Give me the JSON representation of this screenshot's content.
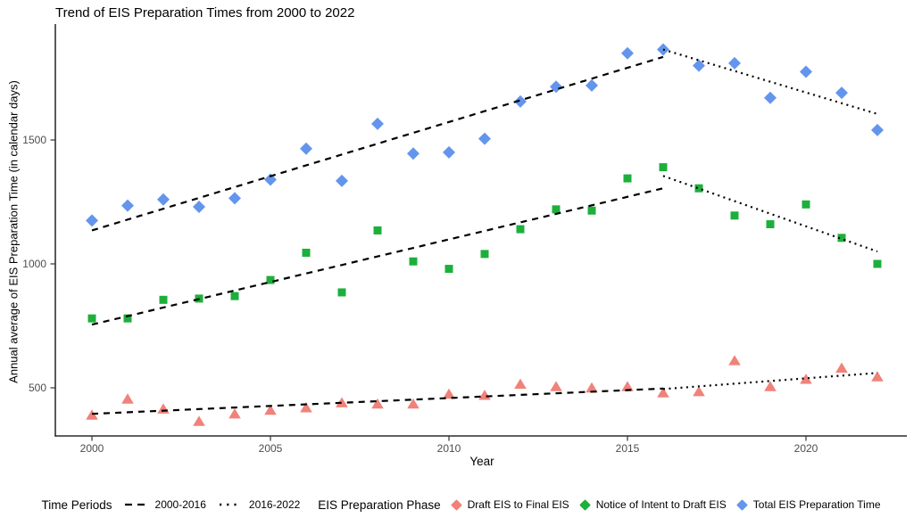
{
  "chart_data": {
    "type": "scatter",
    "title": "Trend of EIS Preparation Times from 2000 to 2022",
    "xlabel": "Year",
    "ylabel": "Annual average of EIS Preparation Time (in calendar days)",
    "x_ticks": [
      2000,
      2005,
      2010,
      2015,
      2020
    ],
    "y_ticks": [
      500,
      1000,
      1500
    ],
    "xlim": [
      1999,
      2023
    ],
    "ylim": [
      300,
      1960
    ],
    "grid": false,
    "legend_position": "bottom",
    "tick_color": "#4D4D4D",
    "axis_color": "#000000",
    "trend_color": "#000000",
    "years": [
      2000,
      2001,
      2002,
      2003,
      2004,
      2005,
      2006,
      2007,
      2008,
      2009,
      2010,
      2011,
      2012,
      2013,
      2014,
      2015,
      2016,
      2017,
      2018,
      2019,
      2020,
      2021,
      2022
    ],
    "series": [
      {
        "name": "Draft EIS to Final EIS",
        "marker": "triangle",
        "color": "#F0827A",
        "values": [
          390,
          455,
          415,
          365,
          395,
          410,
          420,
          440,
          435,
          435,
          475,
          470,
          515,
          505,
          500,
          505,
          480,
          485,
          610,
          505,
          535,
          580,
          545
        ]
      },
      {
        "name": "Notice of Intent to Draft EIS",
        "marker": "square",
        "color": "#1DAF3C",
        "values": [
          780,
          780,
          855,
          860,
          870,
          935,
          1045,
          885,
          1135,
          1010,
          980,
          1040,
          1140,
          1220,
          1215,
          1345,
          1390,
          1305,
          1195,
          1160,
          1240,
          1105,
          1000
        ]
      },
      {
        "name": "Total EIS Preparation Time",
        "marker": "diamond",
        "color": "#6495ED",
        "values": [
          1175,
          1235,
          1260,
          1230,
          1265,
          1340,
          1465,
          1335,
          1565,
          1445,
          1450,
          1505,
          1655,
          1715,
          1720,
          1850,
          1865,
          1800,
          1810,
          1670,
          1775,
          1690,
          1540
        ]
      }
    ],
    "trend_lines": [
      {
        "period": "2000-2016",
        "style": "dashed",
        "series": "Draft EIS to Final EIS",
        "x": [
          2000,
          2016
        ],
        "y": [
          395,
          497
        ]
      },
      {
        "period": "2000-2016",
        "style": "dashed",
        "series": "Notice of Intent to Draft EIS",
        "x": [
          2000,
          2016
        ],
        "y": [
          755,
          1305
        ]
      },
      {
        "period": "2000-2016",
        "style": "dashed",
        "series": "Total EIS Preparation Time",
        "x": [
          2000,
          2016
        ],
        "y": [
          1135,
          1835
        ]
      },
      {
        "period": "2016-2022",
        "style": "dotted",
        "series": "Draft EIS to Final EIS",
        "x": [
          2016,
          2022
        ],
        "y": [
          495,
          560
        ]
      },
      {
        "period": "2016-2022",
        "style": "dotted",
        "series": "Notice of Intent to Draft EIS",
        "x": [
          2016,
          2022
        ],
        "y": [
          1355,
          1050
        ]
      },
      {
        "period": "2016-2022",
        "style": "dotted",
        "series": "Total EIS Preparation Time",
        "x": [
          2016,
          2022
        ],
        "y": [
          1865,
          1605
        ]
      }
    ]
  },
  "legend": {
    "time_periods": {
      "title": "Time Periods",
      "items": [
        {
          "label": "2000-2016",
          "style": "dashed"
        },
        {
          "label": "2016-2022",
          "style": "dotted"
        }
      ]
    },
    "phases": {
      "title": "EIS Preparation Phase",
      "items": [
        {
          "label": "Draft EIS to Final EIS",
          "color": "#F0827A"
        },
        {
          "label": "Notice of Intent to Draft EIS",
          "color": "#1DAF3C"
        },
        {
          "label": "Total EIS Preparation Time",
          "color": "#6495ED"
        }
      ]
    }
  }
}
